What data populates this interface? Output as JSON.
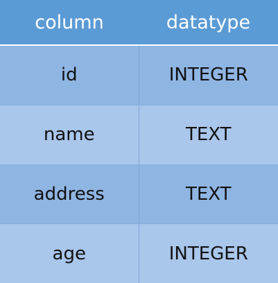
{
  "table": {
    "headers": [
      "column",
      "datatype"
    ],
    "rows": [
      {
        "column": "id",
        "datatype": "INTEGER"
      },
      {
        "column": "name",
        "datatype": "TEXT"
      },
      {
        "column": "address",
        "datatype": "TEXT"
      },
      {
        "column": "age",
        "datatype": "INTEGER"
      }
    ]
  },
  "colors": {
    "header_background": "#5b9bd5",
    "header_text": "#ffffff",
    "row_dark": "#8fb5e3",
    "row_light": "#a9c6eb",
    "cell_text": "#111111"
  }
}
